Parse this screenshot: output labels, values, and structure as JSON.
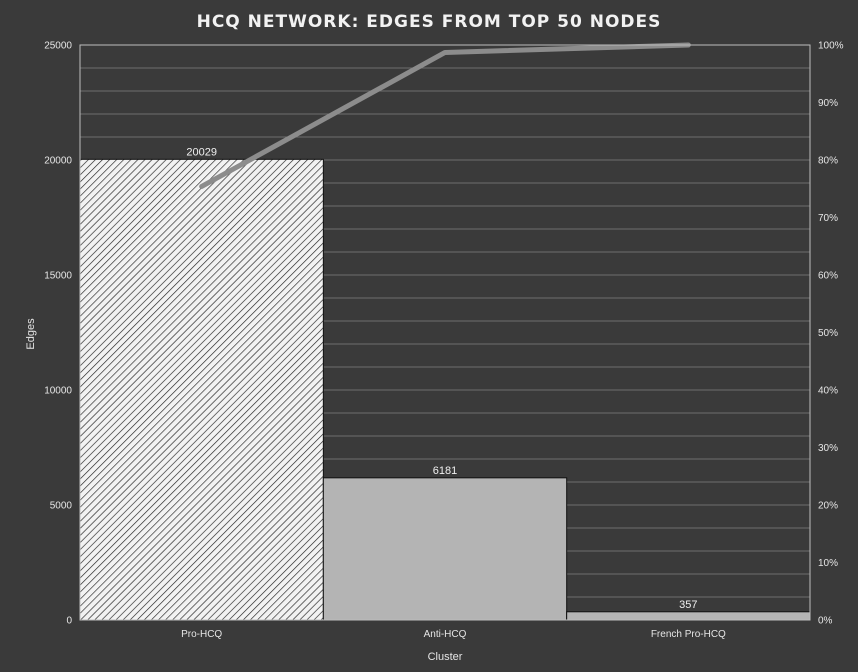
{
  "chart_data": {
    "type": "bar",
    "title": "HCQ NETWORK: EDGES FROM TOP 50 NODES",
    "xlabel": "Cluster",
    "ylabel": "Edges",
    "categories": [
      "Pro-HCQ",
      "Anti-HCQ",
      "French Pro-HCQ"
    ],
    "values": [
      20029,
      6181,
      357
    ],
    "data_labels": [
      "20029",
      "6181",
      "357"
    ],
    "ylim": [
      0,
      25000
    ],
    "y_ticks": [
      "0",
      "5000",
      "10000",
      "15000",
      "20000",
      "25000"
    ],
    "y2lim": [
      0,
      1
    ],
    "y2_ticks": [
      "0%",
      "10%",
      "20%",
      "30%",
      "40%",
      "50%",
      "60%",
      "70%",
      "80%",
      "90%",
      "100%"
    ],
    "cumulative_fraction": [
      0.754,
      0.987,
      1.0
    ],
    "grid": true,
    "colors": {
      "background": "#3a3a3a",
      "plot_border": "#bdbdbd",
      "gridline": "#6e6e6e",
      "bar_hatched_fill": "#f2f2f2",
      "bar_hatched_stroke": "#222222",
      "bar_solid_fill": "#b4b4b4",
      "bar_outline": "#111111",
      "cumulative_line": "#8c8c8c"
    }
  }
}
